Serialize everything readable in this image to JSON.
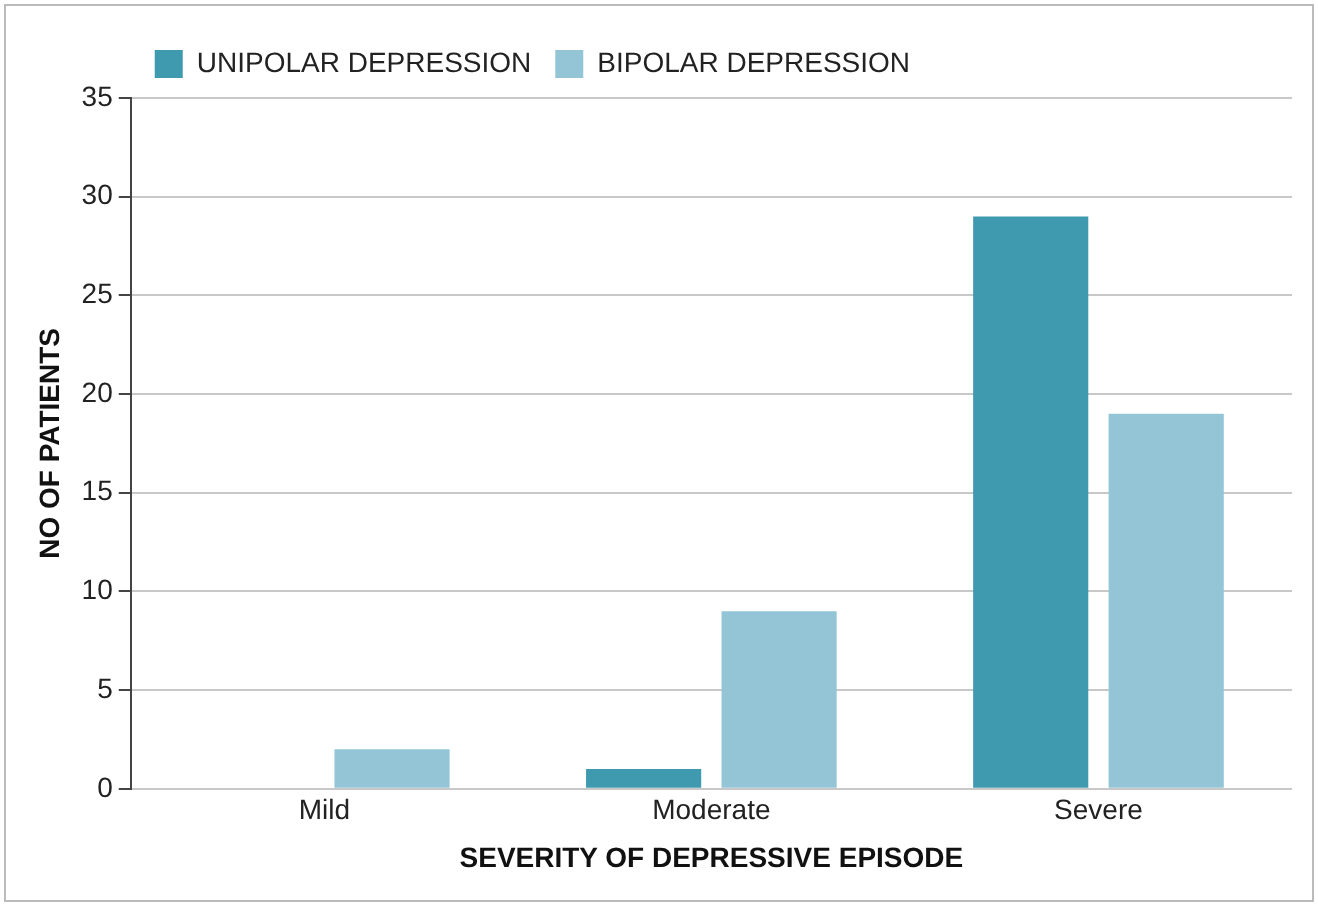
{
  "chart_data": {
    "type": "bar",
    "xlabel": "SEVERITY OF DEPRESSIVE EPISODE",
    "ylabel": "NO OF PATIENTS",
    "categories": [
      "Mild",
      "Moderate",
      "Severe"
    ],
    "series": [
      {
        "name": "UNIPOLAR DEPRESSION",
        "color": "#3f9ab0",
        "values": [
          0,
          1,
          29
        ]
      },
      {
        "name": "BIPOLAR DEPRESSION",
        "color": "#94c5d6",
        "values": [
          2,
          9,
          19
        ]
      }
    ],
    "ylim": [
      0,
      35
    ],
    "yticks": [
      0,
      5,
      10,
      15,
      20,
      25,
      30,
      35
    ],
    "grid": "y",
    "legend": "top left"
  }
}
